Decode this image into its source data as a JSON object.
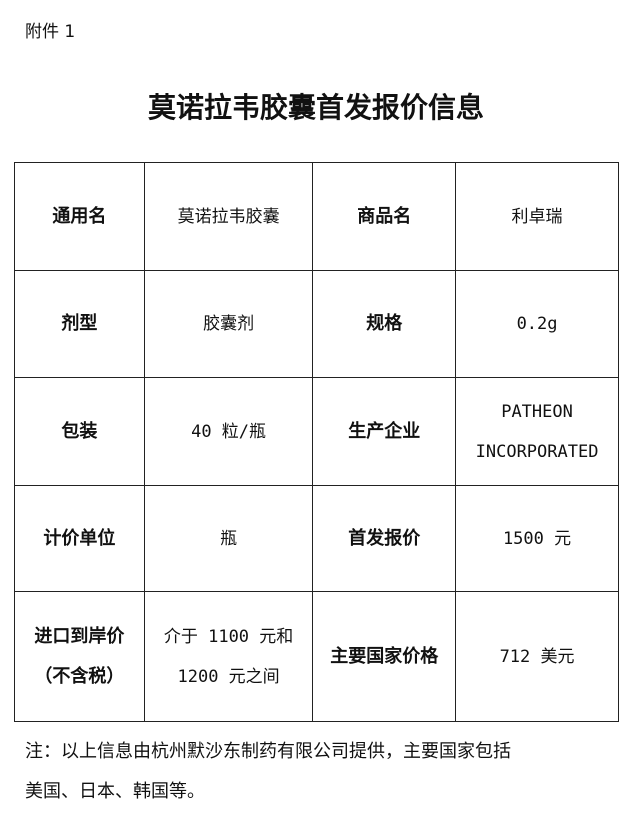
{
  "attachment_label": "附件 1",
  "title": "莫诺拉韦胶囊首发报价信息",
  "rows": [
    {
      "label1": "通用名",
      "value1": "莫诺拉韦胶囊",
      "label2": "商品名",
      "value2": "利卓瑞"
    },
    {
      "label1": "剂型",
      "value1": "胶囊剂",
      "label2": "规格",
      "value2": "0.2g"
    },
    {
      "label1": "包装",
      "value1": "40 粒/瓶",
      "label2": "生产企业",
      "value2_lines": [
        "PATHEON",
        "INCORPORATED"
      ]
    },
    {
      "label1": "计价单位",
      "value1": "瓶",
      "label2": "首发报价",
      "value2": "1500 元"
    },
    {
      "label1_lines": [
        "进口到岸价",
        "（不含税）"
      ],
      "value1_lines": [
        "介于 1100 元和",
        "1200 元之间"
      ],
      "label2": "主要国家价格",
      "value2": "712 美元"
    }
  ],
  "note_lines": [
    "注：以上信息由杭州默沙东制药有限公司提供，主要国家包括",
    "美国、日本、韩国等。"
  ]
}
